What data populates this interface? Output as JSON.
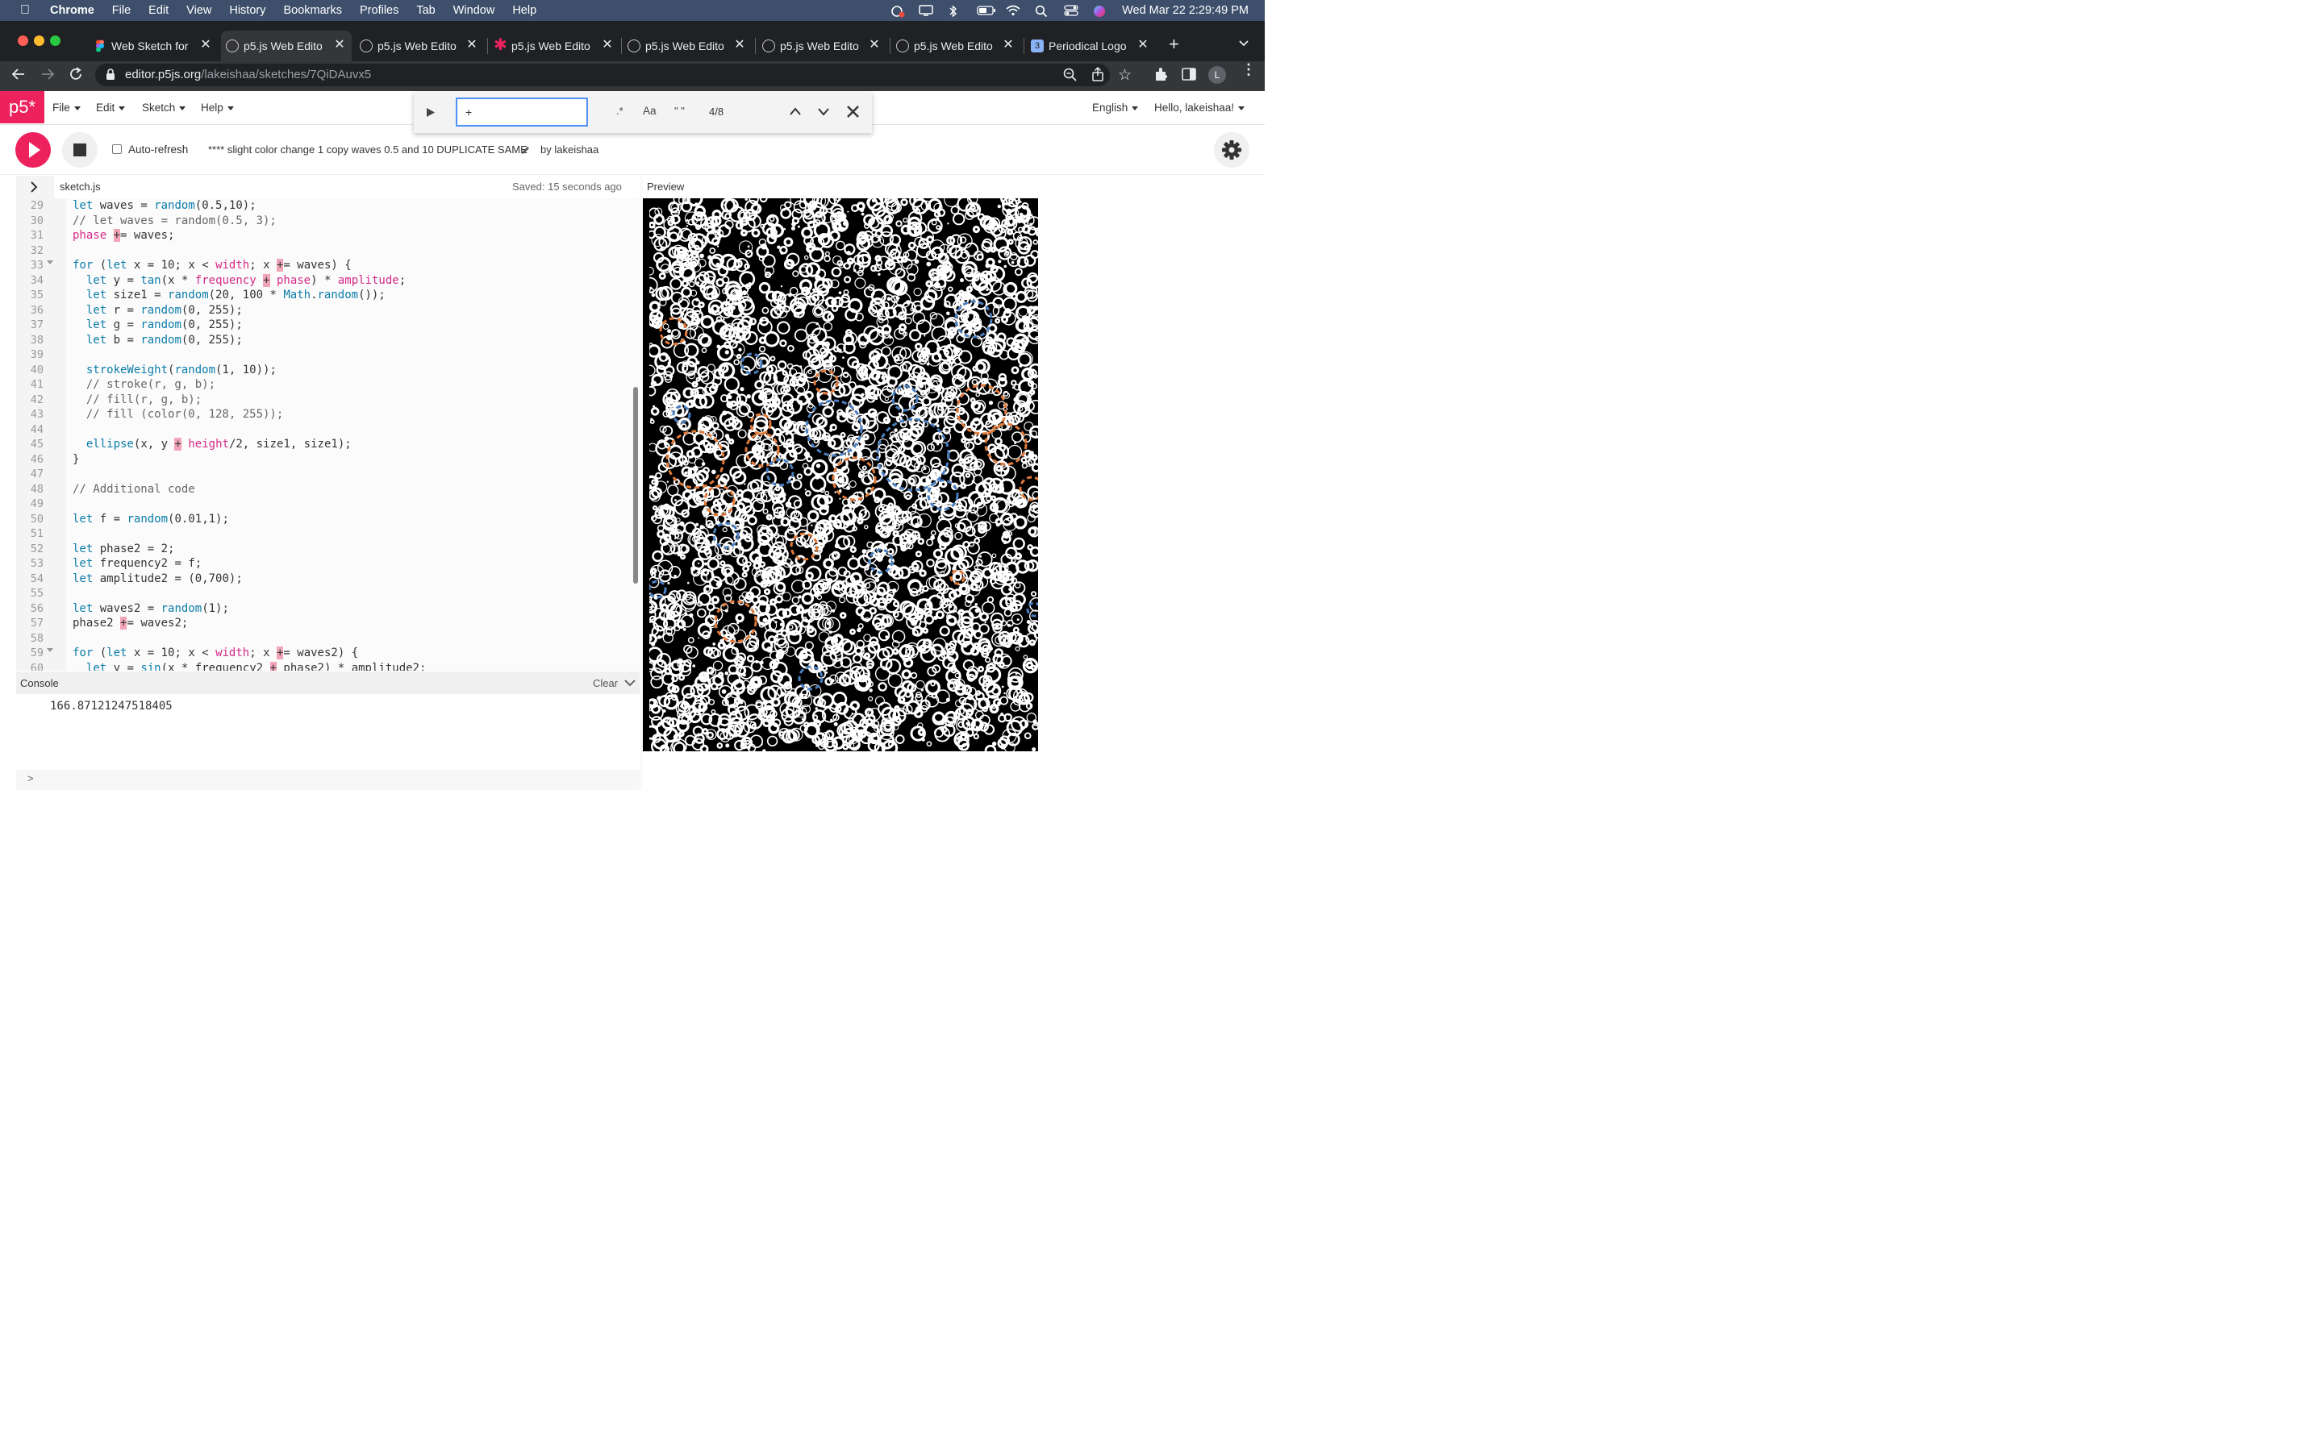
{
  "menubar": {
    "app": "Chrome",
    "items": [
      "File",
      "Edit",
      "View",
      "History",
      "Bookmarks",
      "Profiles",
      "Tab",
      "Window",
      "Help"
    ],
    "datetime": "Wed Mar 22  2:29:49 PM"
  },
  "tabs": [
    {
      "title": "Web Sketch for",
      "icon": "figma-icon"
    },
    {
      "title": "p5.js Web Edito",
      "icon": "globe-icon"
    },
    {
      "title": "p5.js Web Edito",
      "icon": "globe-icon"
    },
    {
      "title": "p5.js Web Edito",
      "icon": "asterisk-icon"
    },
    {
      "title": "p5.js Web Edito",
      "icon": "globe-icon"
    },
    {
      "title": "p5.js Web Edito",
      "icon": "globe-icon"
    },
    {
      "title": "p5.js Web Edito",
      "icon": "globe-icon"
    },
    {
      "title": "Periodical Logo",
      "icon": "tab-badge-icon",
      "badge": "3"
    }
  ],
  "address": {
    "host": "editor.p5js.org",
    "path": "/lakeishaa/sketches/7QiDAuvx5",
    "profile_initial": "L"
  },
  "p5nav": {
    "logo": "p5*",
    "menu": [
      "File",
      "Edit",
      "Sketch",
      "Help"
    ],
    "language": "English",
    "greeting": "Hello, lakeishaa!"
  },
  "find": {
    "query": "+",
    "regex_label": ".*",
    "case_label": "Aa",
    "word_label": "\" \"",
    "count": "4/8"
  },
  "toolbar": {
    "autorefresh_label": "Auto-refresh",
    "sketch_name": "**** slight color change 1 copy waves 0.5 and 10 DUPLICATE SAME",
    "by": "by lakeishaa"
  },
  "editor": {
    "filename": "sketch.js",
    "saved": "Saved: 15 seconds ago",
    "preview_label": "Preview",
    "lines": [
      {
        "n": "29",
        "code": "let waves = random(0.5,10);"
      },
      {
        "n": "30",
        "code": "// let waves = random(0.5, 3);"
      },
      {
        "n": "31",
        "code": "phase += waves;"
      },
      {
        "n": "32",
        "code": ""
      },
      {
        "n": "33",
        "code": "for (let x = 10; x < width; x += waves) {"
      },
      {
        "n": "34",
        "code": "  let y = tan(x * frequency + phase) * amplitude;"
      },
      {
        "n": "35",
        "code": "  let size1 = random(20, 100 * Math.random());"
      },
      {
        "n": "36",
        "code": "  let r = random(0, 255);"
      },
      {
        "n": "37",
        "code": "  let g = random(0, 255);"
      },
      {
        "n": "38",
        "code": "  let b = random(0, 255);"
      },
      {
        "n": "39",
        "code": ""
      },
      {
        "n": "40",
        "code": "  strokeWeight(random(1, 10));"
      },
      {
        "n": "41",
        "code": "  // stroke(r, g, b);"
      },
      {
        "n": "42",
        "code": "  // fill(r, g, b);"
      },
      {
        "n": "43",
        "code": "  // fill (color(0, 128, 255));"
      },
      {
        "n": "44",
        "code": ""
      },
      {
        "n": "45",
        "code": "  ellipse(x, y + height/2, size1, size1);"
      },
      {
        "n": "46",
        "code": "}"
      },
      {
        "n": "47",
        "code": ""
      },
      {
        "n": "48",
        "code": "// Additional code"
      },
      {
        "n": "49",
        "code": ""
      },
      {
        "n": "50",
        "code": "let f = random(0.01,1);"
      },
      {
        "n": "51",
        "code": ""
      },
      {
        "n": "52",
        "code": "let phase2 = 2;"
      },
      {
        "n": "53",
        "code": "let frequency2 = f;"
      },
      {
        "n": "54",
        "code": "let amplitude2 = (0,700);"
      },
      {
        "n": "55",
        "code": ""
      },
      {
        "n": "56",
        "code": "let waves2 = random(1);"
      },
      {
        "n": "57",
        "code": "phase2 += waves2;"
      },
      {
        "n": "58",
        "code": ""
      },
      {
        "n": "59",
        "code": "for (let x = 10; x < width; x += waves2) {"
      },
      {
        "n": "60",
        "code": "  let y = sin(x * frequency2 + phase2) * amplitude2;"
      }
    ]
  },
  "console": {
    "label": "Console",
    "clear_label": "Clear",
    "output": "166.87121247518405",
    "prompt": ">"
  },
  "colors": {
    "p5_pink": "#ed225d",
    "menubar": "#3d4f6b",
    "tabstrip": "#202124"
  }
}
